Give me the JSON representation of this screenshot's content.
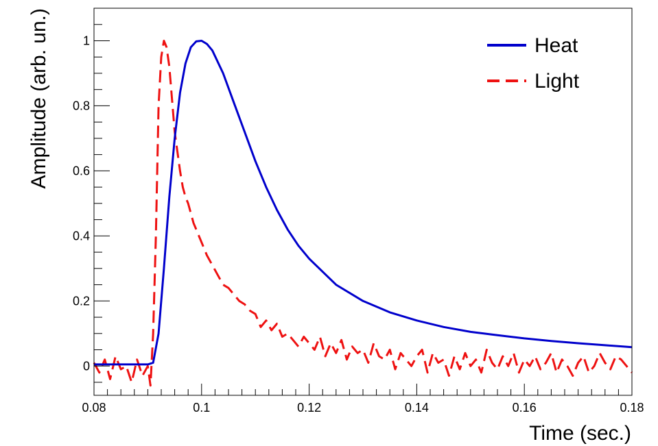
{
  "chart_data": {
    "type": "line",
    "title": "",
    "xlabel": "Time (sec.)",
    "ylabel": "Amplitude (arb. un.)",
    "xlim": [
      0.08,
      0.18
    ],
    "ylim": [
      -0.09,
      1.1
    ],
    "x_ticks": [
      0.08,
      0.1,
      0.12,
      0.14,
      0.16,
      0.18
    ],
    "x_tick_labels": [
      "0.08",
      "0.1",
      "0.12",
      "0.14",
      "0.16",
      "0.18"
    ],
    "y_ticks": [
      0,
      0.2,
      0.4,
      0.6,
      0.8,
      1
    ],
    "y_tick_labels": [
      "0",
      "0.2",
      "0.4",
      "0.6",
      "0.8",
      "1"
    ],
    "grid": false,
    "legend_position": "top-right",
    "series": [
      {
        "name": "Heat",
        "color": "#0000cc",
        "style": "solid",
        "x": [
          0.08,
          0.085,
          0.09,
          0.091,
          0.092,
          0.093,
          0.094,
          0.095,
          0.096,
          0.097,
          0.098,
          0.099,
          0.1,
          0.101,
          0.102,
          0.104,
          0.106,
          0.108,
          0.11,
          0.112,
          0.114,
          0.116,
          0.118,
          0.12,
          0.125,
          0.13,
          0.135,
          0.14,
          0.145,
          0.15,
          0.155,
          0.16,
          0.165,
          0.17,
          0.175,
          0.18
        ],
        "y": [
          0.005,
          0.005,
          0.005,
          0.01,
          0.1,
          0.3,
          0.52,
          0.7,
          0.84,
          0.93,
          0.98,
          0.998,
          1.0,
          0.99,
          0.97,
          0.9,
          0.81,
          0.72,
          0.63,
          0.55,
          0.48,
          0.42,
          0.37,
          0.33,
          0.25,
          0.2,
          0.165,
          0.14,
          0.12,
          0.105,
          0.095,
          0.085,
          0.077,
          0.07,
          0.064,
          0.058
        ]
      },
      {
        "name": "Light",
        "color": "#ee1111",
        "style": "dashed",
        "x": [
          0.08,
          0.081,
          0.082,
          0.083,
          0.084,
          0.085,
          0.086,
          0.087,
          0.088,
          0.089,
          0.09,
          0.0905,
          0.091,
          0.0915,
          0.092,
          0.0925,
          0.093,
          0.0935,
          0.094,
          0.0945,
          0.095,
          0.0955,
          0.096,
          0.0965,
          0.097,
          0.0975,
          0.098,
          0.0985,
          0.099,
          0.0995,
          0.1,
          0.1005,
          0.101,
          0.102,
          0.103,
          0.104,
          0.105,
          0.106,
          0.107,
          0.108,
          0.109,
          0.11,
          0.111,
          0.112,
          0.113,
          0.114,
          0.115,
          0.116,
          0.117,
          0.118,
          0.119,
          0.12,
          0.121,
          0.122,
          0.123,
          0.124,
          0.125,
          0.126,
          0.127,
          0.128,
          0.129,
          0.13,
          0.131,
          0.132,
          0.133,
          0.134,
          0.135,
          0.136,
          0.137,
          0.138,
          0.139,
          0.14,
          0.141,
          0.142,
          0.143,
          0.144,
          0.145,
          0.146,
          0.147,
          0.148,
          0.149,
          0.15,
          0.151,
          0.152,
          0.153,
          0.154,
          0.155,
          0.156,
          0.157,
          0.158,
          0.159,
          0.16,
          0.161,
          0.162,
          0.163,
          0.164,
          0.165,
          0.166,
          0.167,
          0.168,
          0.169,
          0.17,
          0.171,
          0.172,
          0.173,
          0.174,
          0.175,
          0.176,
          0.177,
          0.178,
          0.179,
          0.18
        ],
        "y": [
          0.01,
          -0.02,
          0.02,
          -0.04,
          0.03,
          -0.01,
          0.0,
          -0.05,
          0.02,
          -0.03,
          0.0,
          -0.06,
          0.1,
          0.4,
          0.8,
          0.95,
          1.0,
          0.98,
          0.92,
          0.82,
          0.72,
          0.66,
          0.6,
          0.55,
          0.52,
          0.5,
          0.47,
          0.44,
          0.42,
          0.4,
          0.38,
          0.36,
          0.34,
          0.31,
          0.28,
          0.25,
          0.24,
          0.22,
          0.2,
          0.19,
          0.17,
          0.16,
          0.12,
          0.14,
          0.11,
          0.13,
          0.09,
          0.1,
          0.08,
          0.06,
          0.09,
          0.07,
          0.05,
          0.09,
          0.03,
          0.07,
          0.04,
          0.08,
          0.02,
          0.06,
          0.04,
          0.05,
          0.01,
          0.07,
          0.03,
          0.02,
          0.05,
          -0.01,
          0.04,
          0.02,
          0.0,
          0.03,
          0.05,
          -0.02,
          0.04,
          0.01,
          0.02,
          -0.03,
          0.03,
          -0.01,
          0.04,
          0.0,
          0.02,
          -0.02,
          0.05,
          0.01,
          -0.01,
          0.03,
          0.0,
          0.04,
          -0.02,
          0.02,
          0.0,
          0.03,
          -0.01,
          0.01,
          0.04,
          -0.02,
          0.02,
          0.0,
          -0.03,
          0.01,
          0.03,
          -0.02,
          0.0,
          0.04,
          0.01,
          -0.01,
          0.03,
          0.02,
          0.0,
          -0.02
        ]
      }
    ]
  }
}
